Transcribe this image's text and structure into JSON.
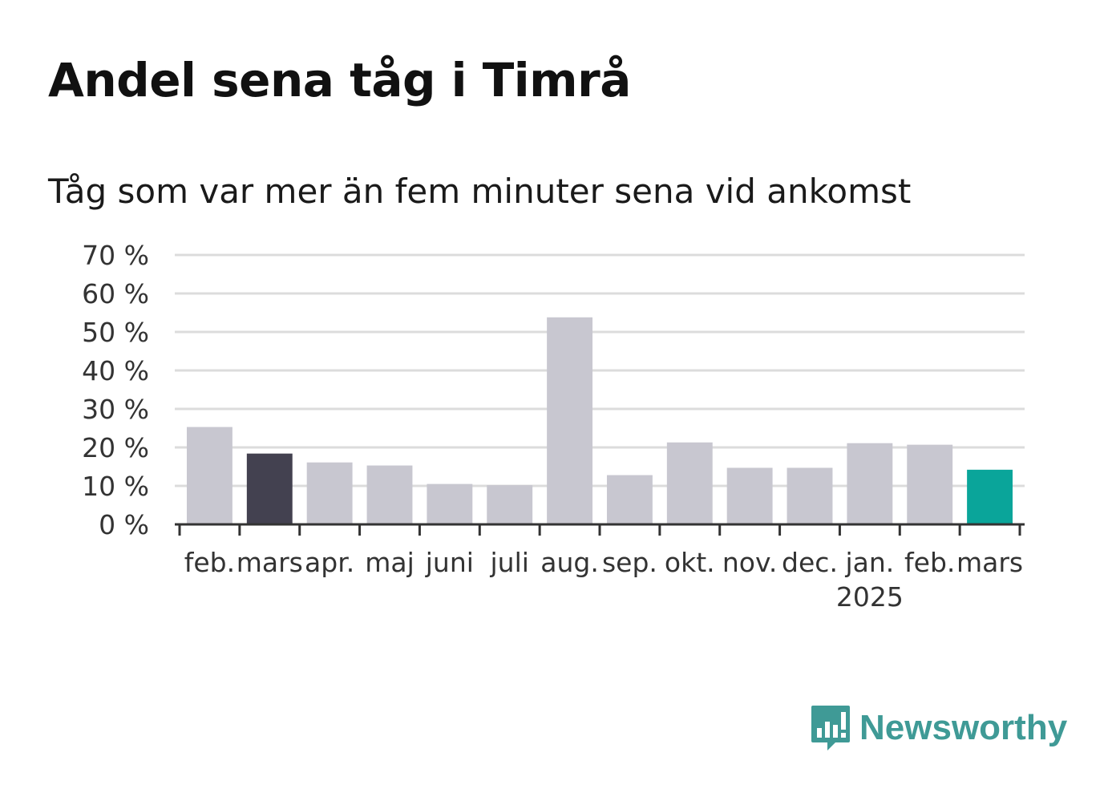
{
  "colors": {
    "default_bar": "#c8c7d0",
    "highlight_previous": "#434150",
    "highlight_current": "#0aa59a",
    "brand": "#3f9a96"
  },
  "logo": {
    "name": "Newsworthy",
    "icon": "bar-chart-speech-bubble-icon"
  },
  "chart_data": {
    "type": "bar",
    "title": "Andel sena tåg i Timrå",
    "subtitle": "Tåg som var mer än fem minuter sena vid ankomst",
    "categories": [
      "feb.",
      "mars",
      "apr.",
      "maj",
      "juni",
      "juli",
      "aug.",
      "sep.",
      "okt.",
      "nov.",
      "dec.",
      "jan.",
      "feb.",
      "mars"
    ],
    "year_labels": [
      {
        "index": 11,
        "label": "2025"
      }
    ],
    "values": [
      25.3,
      18.4,
      16.1,
      15.3,
      10.5,
      10.2,
      53.8,
      12.8,
      21.3,
      14.7,
      14.7,
      21.1,
      20.7,
      14.2
    ],
    "highlight": {
      "1": "previous",
      "13": "current"
    },
    "ylim": [
      0,
      70
    ],
    "yticks": [
      0,
      10,
      20,
      30,
      40,
      50,
      60,
      70
    ],
    "ytick_labels": [
      "0 %",
      "10 %",
      "20 %",
      "30 %",
      "40 %",
      "50 %",
      "60 %",
      "70 %"
    ],
    "xlabel": "",
    "ylabel": "",
    "grid": true,
    "legend": "none"
  }
}
